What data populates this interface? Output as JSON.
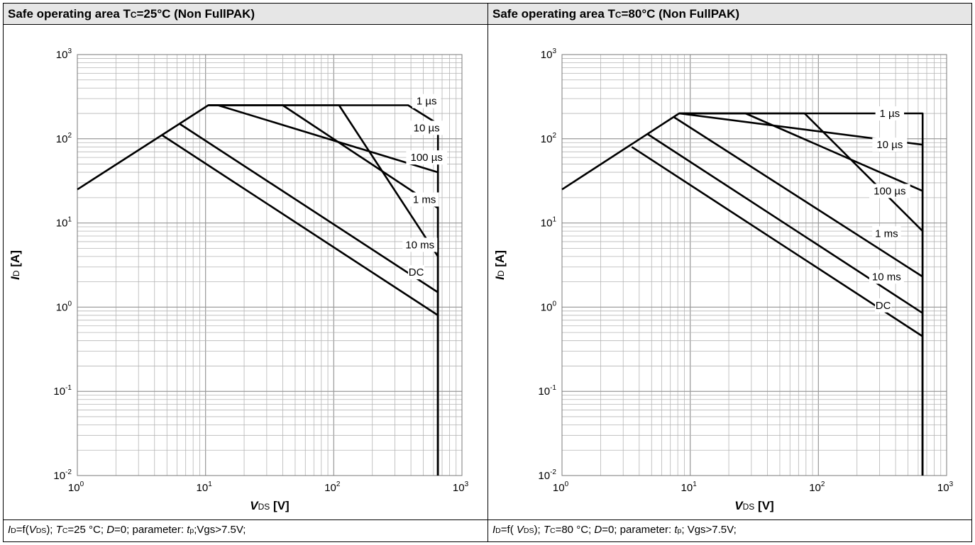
{
  "charts": [
    {
      "title": {
        "main": "Safe operating area T",
        "sub": "C",
        "rest": "=25°C (Non FullPAK)"
      },
      "caption": "I_D=f(V_DS); T_C=25 °C; D=0; parameter: t_p;Vgs>7.5V;",
      "caption_parts": [
        {
          "t": "I",
          "style": "i"
        },
        {
          "t": "D",
          "style": "sub"
        },
        {
          "t": "=f(",
          "style": "n"
        },
        {
          "t": "V",
          "style": "i"
        },
        {
          "t": "DS",
          "style": "sub"
        },
        {
          "t": "); ",
          "style": "n"
        },
        {
          "t": "T",
          "style": "i"
        },
        {
          "t": "C",
          "style": "sub"
        },
        {
          "t": "=25 °C; ",
          "style": "n"
        },
        {
          "t": "D",
          "style": "i"
        },
        {
          "t": "=0; parameter: ",
          "style": "n"
        },
        {
          "t": "t",
          "style": "i"
        },
        {
          "t": "p",
          "style": "sub"
        },
        {
          "t": ";Vgs>7.5V;",
          "style": "n"
        }
      ]
    },
    {
      "title": {
        "main": "Safe operating area T",
        "sub": "C",
        "rest": "=80°C (Non FullPAK)"
      },
      "caption": "I_D=f(V_DS); T_C=80 °C; D=0; parameter: t_p; Vgs>7.5V;",
      "caption_parts": [
        {
          "t": "I",
          "style": "i"
        },
        {
          "t": "D",
          "style": "sub"
        },
        {
          "t": "=f( ",
          "style": "n"
        },
        {
          "t": "V",
          "style": "i"
        },
        {
          "t": "DS",
          "style": "sub"
        },
        {
          "t": "); ",
          "style": "n"
        },
        {
          "t": "T",
          "style": "i"
        },
        {
          "t": "C",
          "style": "sub"
        },
        {
          "t": "=80 °C; ",
          "style": "n"
        },
        {
          "t": "D",
          "style": "i"
        },
        {
          "t": "=0; parameter: ",
          "style": "n"
        },
        {
          "t": "t",
          "style": "i"
        },
        {
          "t": "p",
          "style": "sub"
        },
        {
          "t": "; Vgs>7.5V;",
          "style": "n"
        }
      ]
    }
  ],
  "chart_data": [
    {
      "type": "line",
      "title": "Safe operating area TC=25°C (Non FullPAK)",
      "xscale": "log",
      "yscale": "log",
      "xlim": [
        1,
        1000
      ],
      "ylim": [
        0.01,
        1000
      ],
      "xlabel": {
        "main": "V",
        "sub": "DS",
        "unit": " [V]"
      },
      "ylabel": {
        "main": "I",
        "sub": "D",
        "unit": " [A]"
      },
      "xticks": [
        {
          "base": "10",
          "exp": "0"
        },
        {
          "base": "10",
          "exp": "1"
        },
        {
          "base": "10",
          "exp": "2"
        },
        {
          "base": "10",
          "exp": "3"
        }
      ],
      "yticks": [
        {
          "base": "10",
          "exp": "-2"
        },
        {
          "base": "10",
          "exp": "-1"
        },
        {
          "base": "10",
          "exp": "0"
        },
        {
          "base": "10",
          "exp": "1"
        },
        {
          "base": "10",
          "exp": "2"
        },
        {
          "base": "10",
          "exp": "3"
        }
      ],
      "grid": true,
      "series": [
        {
          "name": "1 µs",
          "label_at": [
            530,
            280
          ],
          "points": [
            [
              1,
              25
            ],
            [
              10.5,
              250
            ],
            [
              380,
              250
            ],
            [
              650,
              150
            ],
            [
              650,
              0.01
            ]
          ]
        },
        {
          "name": "10 µs",
          "label_at": [
            530,
            135
          ],
          "points": [
            [
              10.5,
              250
            ],
            [
              12.5,
              250
            ],
            [
              650,
              40
            ],
            [
              650,
              0.01
            ]
          ]
        },
        {
          "name": "100 µs",
          "label_at": [
            530,
            60
          ],
          "points": [
            [
              10.5,
              250
            ],
            [
              40,
              250
            ],
            [
              650,
              15
            ],
            [
              650,
              0.01
            ]
          ]
        },
        {
          "name": "1 ms",
          "label_at": [
            510,
            19
          ],
          "points": [
            [
              10.5,
              250
            ],
            [
              110,
              250
            ],
            [
              650,
              4
            ],
            [
              650,
              0.01
            ]
          ]
        },
        {
          "name": "10 ms",
          "label_at": [
            470,
            5.5
          ],
          "points": [
            [
              6.3,
              150
            ],
            [
              650,
              1.5
            ],
            [
              650,
              0.01
            ]
          ]
        },
        {
          "name": "DC",
          "label_at": [
            440,
            2.6
          ],
          "points": [
            [
              4.6,
              110
            ],
            [
              650,
              0.8
            ],
            [
              650,
              0.01
            ]
          ]
        }
      ]
    },
    {
      "type": "line",
      "title": "Safe operating area TC=80°C (Non FullPAK)",
      "xscale": "log",
      "yscale": "log",
      "xlim": [
        1,
        1000
      ],
      "ylim": [
        0.01,
        1000
      ],
      "xlabel": {
        "main": "V",
        "sub": "DS",
        "unit": " [V]"
      },
      "ylabel": {
        "main": "I",
        "sub": "D",
        "unit": " [A]"
      },
      "xticks": [
        {
          "base": "10",
          "exp": "0"
        },
        {
          "base": "10",
          "exp": "1"
        },
        {
          "base": "10",
          "exp": "2"
        },
        {
          "base": "10",
          "exp": "3"
        }
      ],
      "yticks": [
        {
          "base": "10",
          "exp": "-2"
        },
        {
          "base": "10",
          "exp": "-1"
        },
        {
          "base": "10",
          "exp": "0"
        },
        {
          "base": "10",
          "exp": "1"
        },
        {
          "base": "10",
          "exp": "2"
        },
        {
          "base": "10",
          "exp": "3"
        }
      ],
      "grid": true,
      "series": [
        {
          "name": "1 µs",
          "label_at": [
            360,
            200
          ],
          "points": [
            [
              1,
              25
            ],
            [
              8.2,
              200
            ],
            [
              650,
              200
            ],
            [
              650,
              0.01
            ]
          ]
        },
        {
          "name": "10 µs",
          "label_at": [
            360,
            85
          ],
          "points": [
            [
              8.2,
              200
            ],
            [
              650,
              85
            ],
            [
              650,
              0.01
            ]
          ]
        },
        {
          "name": "100 µs",
          "label_at": [
            360,
            24
          ],
          "points": [
            [
              8.2,
              200
            ],
            [
              27,
              200
            ],
            [
              650,
              24
            ],
            [
              650,
              0.01
            ]
          ]
        },
        {
          "name": "1 ms",
          "label_at": [
            340,
            7.5
          ],
          "points": [
            [
              8.2,
              200
            ],
            [
              78,
              200
            ],
            [
              650,
              8
            ],
            [
              650,
              0.01
            ]
          ]
        },
        {
          "name": "10 ms",
          "label_at": [
            340,
            2.3
          ],
          "points": [
            [
              7.5,
              180
            ],
            [
              650,
              2.3
            ],
            [
              650,
              0.01
            ]
          ]
        },
        {
          "name": "DC",
          "label_at": [
            320,
            1.05
          ],
          "points": [
            [
              4.6,
              115
            ],
            [
              650,
              0.85
            ],
            [
              650,
              0.01
            ]
          ]
        },
        {
          "name": "",
          "label_at": null,
          "points": [
            [
              3.5,
              80
            ],
            [
              650,
              0.45
            ],
            [
              650,
              0.01
            ]
          ]
        }
      ]
    }
  ]
}
